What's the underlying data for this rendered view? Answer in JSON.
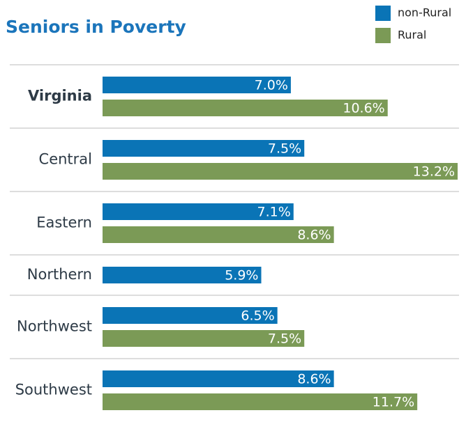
{
  "chart_data": {
    "type": "bar",
    "orientation": "horizontal",
    "title": "Seniors in Poverty",
    "categories": [
      "Virginia",
      "Central",
      "Eastern",
      "Northern",
      "Northwest",
      "Southwest"
    ],
    "series": [
      {
        "name": "non-Rural",
        "color": "#0a74b6",
        "values": [
          7.0,
          7.5,
          7.1,
          5.9,
          6.5,
          8.6
        ],
        "value_labels": [
          "7.0%",
          "7.5%",
          "7.1%",
          "5.9%",
          "6.5%",
          "8.6%"
        ]
      },
      {
        "name": "Rural",
        "color": "#7b9a56",
        "values": [
          10.6,
          13.2,
          8.6,
          null,
          7.5,
          11.7
        ],
        "value_labels": [
          "10.6%",
          "13.2%",
          "8.6%",
          null,
          "7.5%",
          "11.7%"
        ]
      }
    ]
  }
}
